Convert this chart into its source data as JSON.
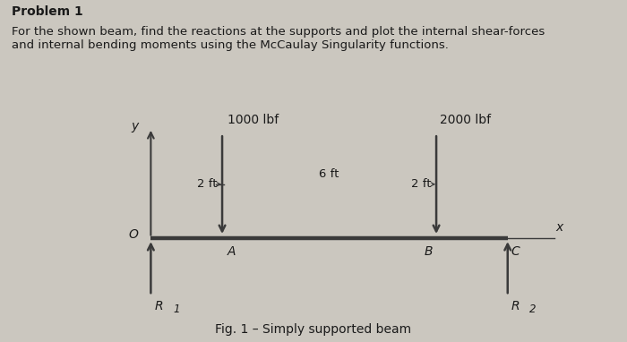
{
  "title_bold": "Problem 1",
  "title_text": "For the shown beam, find the reactions at the supports and plot the internal shear-forces\nand internal bending moments using the McCaulay Singularity functions.",
  "fig_caption": "Fig. 1 – Simply supported beam",
  "origin_label": "O",
  "x_axis_label": "x",
  "y_axis_label": "y",
  "point_A_label": "A",
  "point_B_label": "B",
  "point_C_label": "C",
  "R1_label": "R",
  "R1_sub": "1",
  "R2_label": "R",
  "R2_sub": "2",
  "load1_label": "1000 lbf",
  "load2_label": "2000 lbf",
  "dist_OA": "2 ft",
  "dist_AB": "6 ft",
  "dist_BC": "2 ft",
  "beam_color": "#3a3a3a",
  "arrow_color": "#3a3a3a",
  "text_color": "#1a1a1a",
  "box_facecolor": "#eeeae4",
  "box_edgecolor": "#555555",
  "background_color": "#cbc7bf",
  "title_fontsize": 10,
  "body_fontsize": 9.5,
  "label_fontsize": 10,
  "dim_fontsize": 9.5,
  "caption_fontsize": 10
}
